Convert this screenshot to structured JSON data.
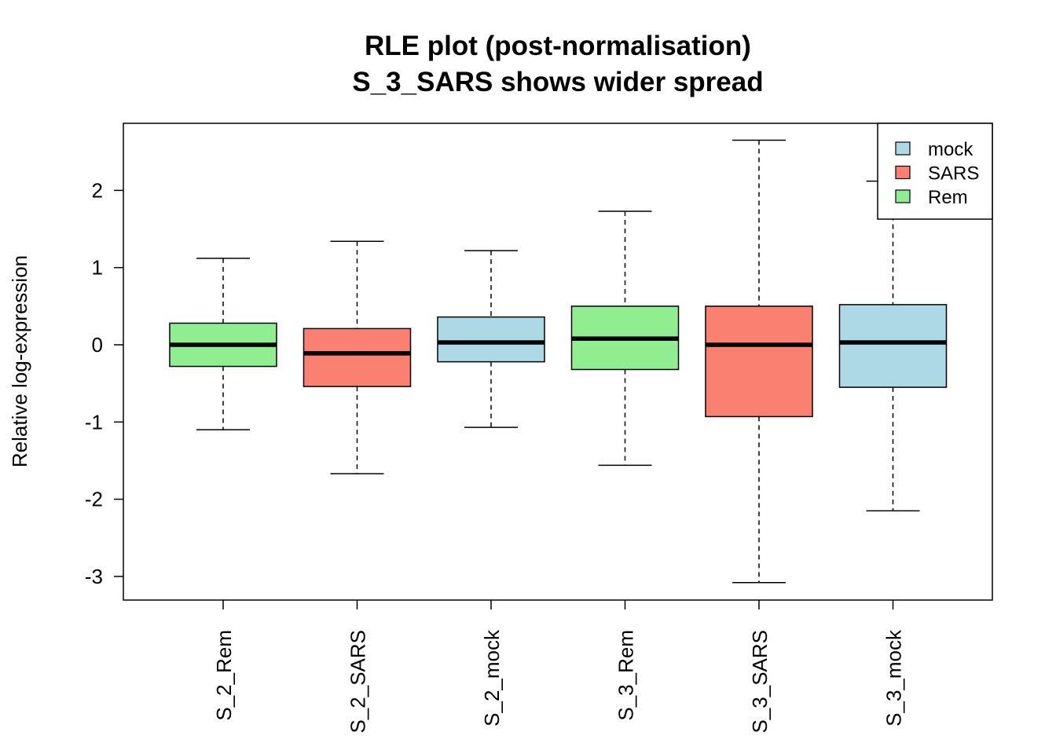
{
  "chart_data": {
    "type": "boxplot",
    "title": "RLE plot (post-normalisation)",
    "subtitle": "S_3_SARS shows wider spread",
    "xlabel": "",
    "ylabel": "Relative log-expression",
    "ylim": [
      -3.25,
      2.9
    ],
    "yticks": [
      "2",
      "1",
      "0",
      "-1",
      "-2",
      "-3"
    ],
    "ytick_values": [
      2,
      1,
      0,
      -1,
      -2,
      -3
    ],
    "grid": false,
    "legend_position": "top-right",
    "colors": {
      "mock": "#add8e6",
      "SARS": "#fa8072",
      "Rem": "#90ee90"
    },
    "legend": [
      {
        "label": "mock",
        "color": "#add8e6"
      },
      {
        "label": "SARS",
        "color": "#fa8072"
      },
      {
        "label": "Rem",
        "color": "#90ee90"
      }
    ],
    "categories": [
      "S_2_Rem",
      "S_2_SARS",
      "S_2_mock",
      "S_3_Rem",
      "S_3_SARS",
      "S_3_mock"
    ],
    "boxes": [
      {
        "sample": "S_2_Rem",
        "group": "Rem",
        "min": -1.1,
        "q1": -0.28,
        "median": 0.0,
        "q3": 0.28,
        "max": 1.12
      },
      {
        "sample": "S_2_SARS",
        "group": "SARS",
        "min": -1.67,
        "q1": -0.54,
        "median": -0.11,
        "q3": 0.21,
        "max": 1.34
      },
      {
        "sample": "S_2_mock",
        "group": "mock",
        "min": -1.07,
        "q1": -0.22,
        "median": 0.03,
        "q3": 0.36,
        "max": 1.22
      },
      {
        "sample": "S_3_Rem",
        "group": "Rem",
        "min": -1.56,
        "q1": -0.32,
        "median": 0.08,
        "q3": 0.5,
        "max": 1.73
      },
      {
        "sample": "S_3_SARS",
        "group": "SARS",
        "min": -3.08,
        "q1": -0.93,
        "median": 0.0,
        "q3": 0.5,
        "max": 2.65
      },
      {
        "sample": "S_3_mock",
        "group": "mock",
        "min": -2.15,
        "q1": -0.55,
        "median": 0.03,
        "q3": 0.52,
        "max": 2.12
      }
    ]
  }
}
